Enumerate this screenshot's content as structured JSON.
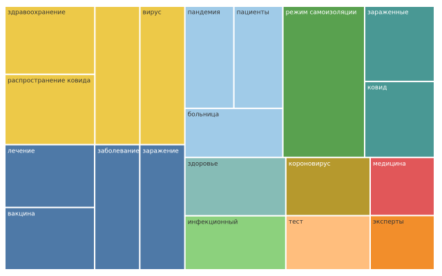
{
  "chart_data": {
    "type": "treemap",
    "categories": [
      "здравоохранение",
      "распространение ковида",
      null,
      "вирус",
      "лечение",
      "вакцина",
      "заболевание",
      "заражение",
      "пандемия",
      "пациенты",
      "больница",
      "режим самоизоляции",
      "зараженные",
      "ковид",
      "здоровье",
      "инфекционный",
      "короновирус",
      "тест",
      "медицина",
      "эксперты"
    ],
    "values": [
      125,
      129,
      127,
      127,
      115,
      114,
      115,
      115,
      102,
      102,
      98,
      252,
      107,
      108,
      120,
      111,
      100,
      93,
      76,
      71
    ],
    "colors": [
      "#edc948",
      "#edc948",
      "#edc948",
      "#edc948",
      "#4e79a7",
      "#4e79a7",
      "#4e79a7",
      "#4e79a7",
      "#a0cbe8",
      "#a0cbe8",
      "#a0cbe8",
      "#59a14f",
      "#499894",
      "#499894",
      "#86bcb6",
      "#8cd17d",
      "#b6992d",
      "#ffbe7d",
      "#e15759",
      "#f28e2b"
    ]
  }
}
